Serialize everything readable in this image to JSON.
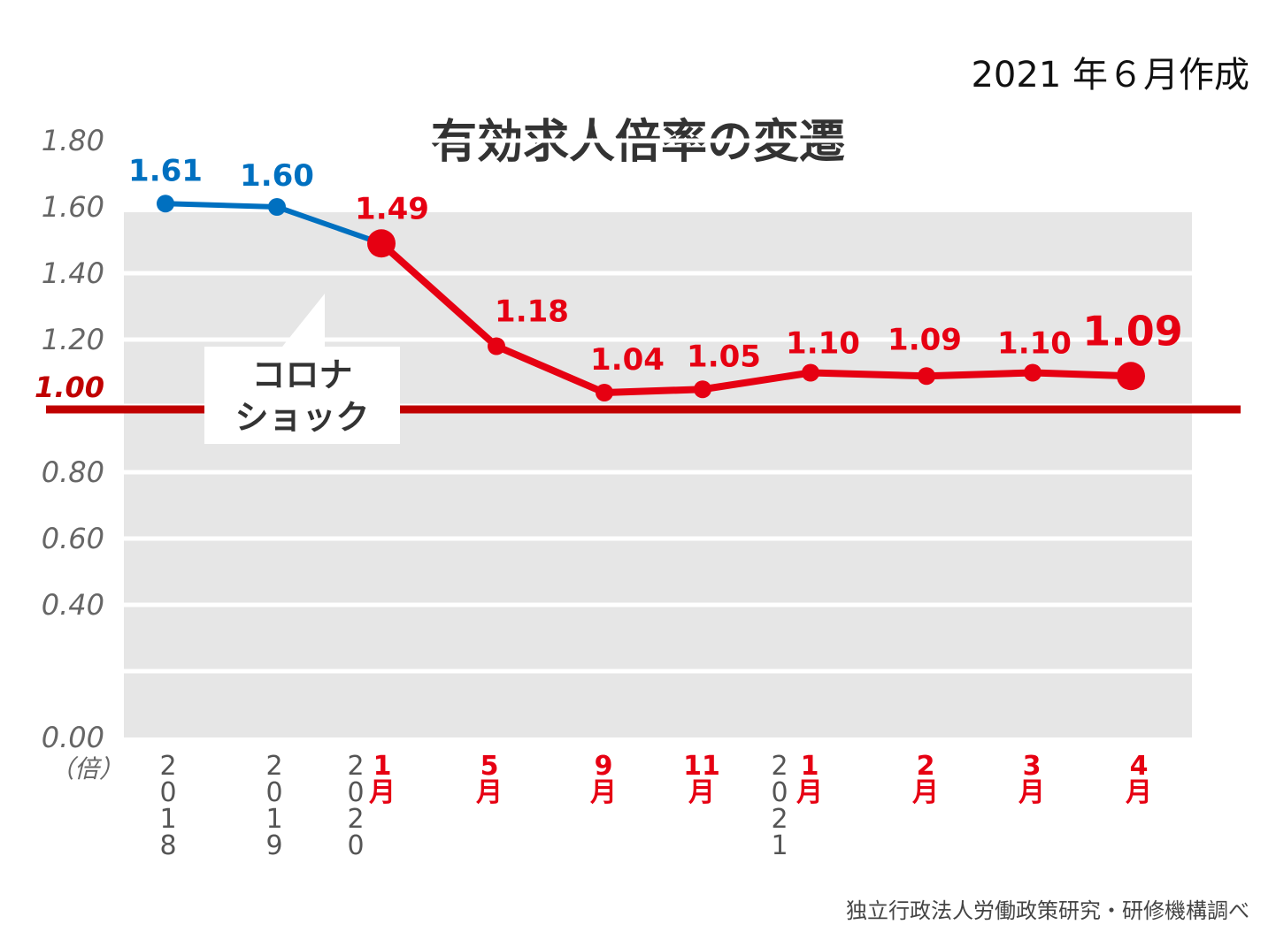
{
  "created_label": "2021 年６月作成",
  "source_label": "独立行政法人労働政策研究・研修機構調べ",
  "callout": {
    "line1": "コロナ",
    "line2": "ショック"
  },
  "colors": {
    "blue": "#0070c0",
    "red": "#e60012",
    "baseline": "#c00000",
    "plot_bg": "#e6e6e6",
    "tick_text": "#666666"
  },
  "chart_data": {
    "type": "line",
    "title": "有効求人倍率の変遷",
    "ylabel": "（倍）",
    "ylim": [
      0,
      1.8
    ],
    "yticks": [
      "0.00",
      "0.40",
      "0.60",
      "0.80",
      "1.00",
      "1.20",
      "1.40",
      "1.60",
      "1.80"
    ],
    "ytick_values": [
      0,
      0.4,
      0.6,
      0.8,
      1.0,
      1.2,
      1.4,
      1.6,
      1.8
    ],
    "reference_line": {
      "value": 1.0,
      "label": "1.00"
    },
    "grid": true,
    "year_labels": [
      "2018",
      "2019",
      "2020",
      "2021"
    ],
    "categories": [
      "2018",
      "2019",
      "2020年1月",
      "5月",
      "9月",
      "11月",
      "2021年1月",
      "2月",
      "3月",
      "4月"
    ],
    "month_labels": [
      "",
      "",
      "1",
      "5",
      "9",
      "11",
      "1",
      "2",
      "3",
      "4"
    ],
    "month_suffix": "月",
    "series": [
      {
        "values": [
          1.61,
          1.6,
          1.49,
          null,
          null,
          null,
          null,
          null,
          null,
          null
        ],
        "color": "#0070c0"
      },
      {
        "values": [
          null,
          null,
          1.49,
          1.18,
          1.04,
          1.05,
          1.1,
          1.09,
          1.1,
          1.09
        ],
        "color": "#e60012"
      }
    ],
    "data_labels": [
      "1.61",
      "1.60",
      "1.49",
      "1.18",
      "1.04",
      "1.05",
      "1.10",
      "1.09",
      "1.10",
      "1.09"
    ]
  }
}
